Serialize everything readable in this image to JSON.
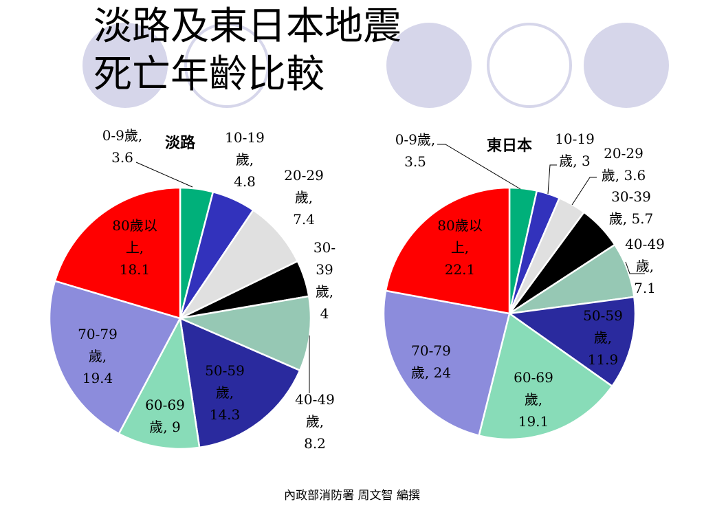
{
  "title_lines": [
    "淡路及東日本地震",
    "死亡年齡比較"
  ],
  "credit": "內政部消防署 周文智 編撰",
  "colors": {
    "circle_fill": "#d6d6ea",
    "circle_ring": "#d6d6ea"
  },
  "chart_data": [
    {
      "type": "pie",
      "title": "淡路",
      "unit": "%",
      "slices": [
        {
          "category": "0-9歲",
          "value": 3.6,
          "color": "#00b07a",
          "label": [
            "0-9歲,",
            "3.6"
          ]
        },
        {
          "category": "10-19歲",
          "value": 4.8,
          "color": "#3232bc",
          "label": [
            "10-19",
            "歲,",
            "4.8"
          ]
        },
        {
          "category": "20-29歲",
          "value": 7.4,
          "color": "#e0e0e0",
          "label": [
            "20-29",
            "歲,",
            "7.4"
          ]
        },
        {
          "category": "30-39歲",
          "value": 4,
          "color": "#000000",
          "label": [
            "30-",
            "39",
            "歲,",
            "4"
          ]
        },
        {
          "category": "40-49歲",
          "value": 8.2,
          "color": "#96c8b4",
          "label": [
            "40-49",
            "歲,",
            "8.2"
          ]
        },
        {
          "category": "50-59歲",
          "value": 14.3,
          "color": "#2a2a9e",
          "label": [
            "50-59",
            "歲,",
            "14.3"
          ]
        },
        {
          "category": "60-69歲",
          "value": 9,
          "color": "#88dcb8",
          "label": [
            "60-69",
            "歲, 9"
          ]
        },
        {
          "category": "70-79歲",
          "value": 19.4,
          "color": "#8c8cdc",
          "label": [
            "70-79",
            "歲,",
            "19.4"
          ]
        },
        {
          "category": "80歲以上",
          "value": 18.1,
          "color": "#ff0000",
          "label": [
            "80歲以",
            "上,",
            "18.1"
          ]
        }
      ]
    },
    {
      "type": "pie",
      "title": "東日本",
      "unit": "%",
      "slices": [
        {
          "category": "0-9歲",
          "value": 3.5,
          "color": "#00b07a",
          "label": [
            "0-9歲,",
            "3.5"
          ]
        },
        {
          "category": "10-19歲",
          "value": 3,
          "color": "#3232bc",
          "label": [
            "10-19",
            "歲, 3"
          ]
        },
        {
          "category": "20-29歲",
          "value": 3.6,
          "color": "#e0e0e0",
          "label": [
            "20-29",
            "歲, 3.6"
          ]
        },
        {
          "category": "30-39歲",
          "value": 5.7,
          "color": "#000000",
          "label": [
            "30-39",
            "歲, 5.7"
          ]
        },
        {
          "category": "40-49歲",
          "value": 7.1,
          "color": "#96c8b4",
          "label": [
            "40-49",
            "歲,",
            "7.1"
          ]
        },
        {
          "category": "50-59歲",
          "value": 11.9,
          "color": "#2a2a9e",
          "label": [
            "50-59",
            "歲,",
            "11.9"
          ]
        },
        {
          "category": "60-69歲",
          "value": 19.1,
          "color": "#88dcb8",
          "label": [
            "60-69",
            "歲,",
            "19.1"
          ]
        },
        {
          "category": "70-79歲",
          "value": 24,
          "color": "#8c8cdc",
          "label": [
            "70-79",
            "歲, 24"
          ]
        },
        {
          "category": "80歲以上",
          "value": 22.1,
          "color": "#ff0000",
          "label": [
            "80歲以",
            "上,",
            "22.1"
          ]
        }
      ]
    }
  ]
}
